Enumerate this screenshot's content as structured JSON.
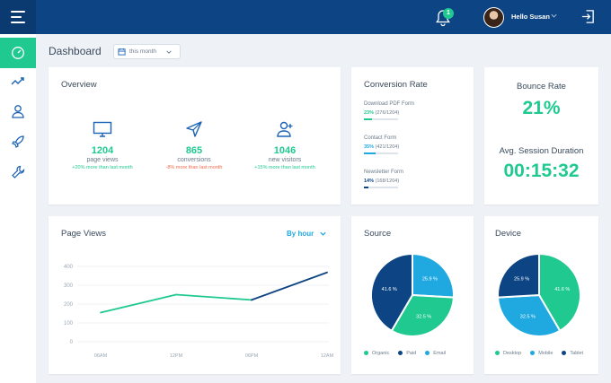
{
  "header": {
    "notifications_count": "1",
    "user_greeting": "Hello Susan",
    "icons": [
      "menu-icon",
      "bell-icon",
      "chevron-down-icon",
      "logout-icon"
    ]
  },
  "sidebar": {
    "items": [
      {
        "icon": "speedometer-icon",
        "active": true
      },
      {
        "icon": "trend-icon",
        "active": false
      },
      {
        "icon": "user-icon",
        "active": false
      },
      {
        "icon": "rocket-icon",
        "active": false
      },
      {
        "icon": "wrench-icon",
        "active": false
      }
    ]
  },
  "page": {
    "title": "Dashboard",
    "range": "this month"
  },
  "overview": {
    "title": "Overview",
    "stats": [
      {
        "icon": "monitor-icon",
        "value": "1204",
        "label": "page views",
        "change": "+20% more than last month",
        "color": "#1fc990"
      },
      {
        "icon": "send-icon",
        "value": "865",
        "label": "conversions",
        "change": "-8% more than last month",
        "color": "#f06a4a"
      },
      {
        "icon": "add-user-icon",
        "value": "1046",
        "label": "new visitors",
        "change": "+15% more than last month",
        "color": "#1fc990"
      }
    ]
  },
  "conversion": {
    "title": "Conversion Rate",
    "items": [
      {
        "name": "Download PDF Form",
        "pct": "23%",
        "detail": "(276/1204)",
        "fraction": 0.23,
        "color": "#1fc990"
      },
      {
        "name": "Contact Form",
        "pct": "35%",
        "detail": "(421/1204)",
        "fraction": 0.35,
        "color": "#1fa9e0"
      },
      {
        "name": "Newsletter Form",
        "pct": "14%",
        "detail": "(168/1204)",
        "fraction": 0.14,
        "color": "#0d4584"
      }
    ]
  },
  "bounce": {
    "title": "Bounce Rate",
    "value": "21%",
    "session_title": "Avg. Session Duration",
    "session_value": "00:15:32"
  },
  "pageviews": {
    "title": "Page Views",
    "filter": "By hour",
    "chart_data": {
      "type": "line",
      "x": [
        "06AM",
        "12PM",
        "06PM",
        "12AM"
      ],
      "y_ticks": [
        "400",
        "300",
        "200",
        "100",
        "0"
      ],
      "ylim": [
        0,
        400
      ],
      "series": [
        {
          "segments": [
            {
              "x": [
                0,
                1
              ],
              "values": [
                155,
                250
              ],
              "color": "#1fc990"
            },
            {
              "x": [
                1,
                2
              ],
              "values": [
                250,
                222
              ],
              "color": "#1fc990"
            },
            {
              "x": [
                2,
                3
              ],
              "values": [
                222,
                368
              ],
              "color": "#0d4584"
            }
          ]
        }
      ]
    }
  },
  "source": {
    "title": "Source",
    "chart_data": {
      "type": "pie",
      "slices": [
        {
          "label": "25.9 %",
          "name": "Email",
          "value": 25.9,
          "color": "#1fa9e0"
        },
        {
          "label": "32.5 %",
          "name": "Organic",
          "value": 32.5,
          "color": "#1fc990"
        },
        {
          "label": "41.6 %",
          "name": "Paid",
          "value": 41.6,
          "color": "#0d4584"
        }
      ],
      "legend": [
        "Organic",
        "Paid",
        "Email"
      ]
    }
  },
  "device": {
    "title": "Device",
    "chart_data": {
      "type": "pie",
      "slices": [
        {
          "label": "41.6 %",
          "name": "Desktop",
          "value": 41.6,
          "color": "#1fc990"
        },
        {
          "label": "32.5 %",
          "name": "Mobile",
          "value": 32.5,
          "color": "#1fa9e0"
        },
        {
          "label": "25.9 %",
          "name": "Tablet",
          "value": 25.9,
          "color": "#0d4584"
        }
      ],
      "legend": [
        "Desktop",
        "Mobile",
        "Tablet"
      ]
    }
  }
}
